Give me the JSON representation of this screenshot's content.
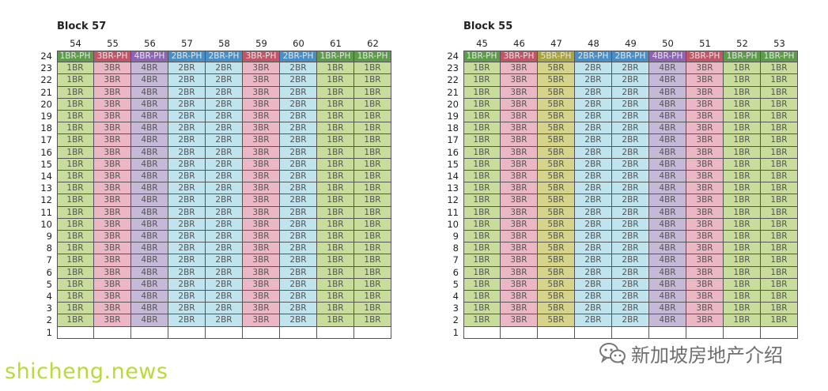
{
  "palette": {
    "1BR": "#c8dd9b",
    "2BR": "#bfe4ee",
    "3BR": "#ebb7c4",
    "4BR": "#c6b9d8",
    "5BR": "#d5d48a",
    "1BR-PH": "#5e9b4b",
    "2BR-PH": "#4a8ec7",
    "3BR-PH": "#c25667",
    "4BR-PH": "#8e64b4",
    "5BR-PH": "#a8a442",
    "empty": "#ffffff",
    "ph_text": "#e6e6e6",
    "text": "#555555",
    "watermark": "#b8da3a"
  },
  "blocks": [
    {
      "title": "Block 57",
      "stacks": [
        "54",
        "55",
        "56",
        "57",
        "58",
        "59",
        "60",
        "61",
        "62"
      ],
      "unit_types": [
        "1BR",
        "3BR",
        "4BR",
        "2BR",
        "2BR",
        "3BR",
        "2BR",
        "1BR",
        "1BR"
      ],
      "penthouse_types": [
        "1BR-PH",
        "3BR-PH",
        "4BR-PH",
        "2BR-PH",
        "2BR-PH",
        "3BR-PH",
        "2BR-PH",
        "1BR-PH",
        "1BR-PH"
      ],
      "floors": [
        "24",
        "23",
        "22",
        "21",
        "20",
        "19",
        "18",
        "17",
        "16",
        "15",
        "14",
        "13",
        "12",
        "11",
        "10",
        "9",
        "8",
        "7",
        "6",
        "5",
        "4",
        "3",
        "2",
        "1"
      ]
    },
    {
      "title": "Block 55",
      "stacks": [
        "45",
        "46",
        "47",
        "48",
        "49",
        "50",
        "51",
        "52",
        "53"
      ],
      "unit_types": [
        "1BR",
        "3BR",
        "5BR",
        "2BR",
        "2BR",
        "4BR",
        "3BR",
        "1BR",
        "1BR"
      ],
      "penthouse_types": [
        "1BR-PH",
        "3BR-PH",
        "5BR-PH",
        "2BR-PH",
        "2BR-PH",
        "4BR-PH",
        "3BR-PH",
        "1BR-PH",
        "1BR-PH"
      ],
      "floors": [
        "24",
        "23",
        "22",
        "21",
        "20",
        "19",
        "18",
        "17",
        "16",
        "15",
        "14",
        "13",
        "12",
        "11",
        "10",
        "9",
        "8",
        "7",
        "6",
        "5",
        "4",
        "3",
        "2",
        "1"
      ]
    }
  ],
  "watermark": "shicheng.news",
  "wechat": {
    "icon": "wechat-icon",
    "text": "新加坡房地产介绍"
  }
}
